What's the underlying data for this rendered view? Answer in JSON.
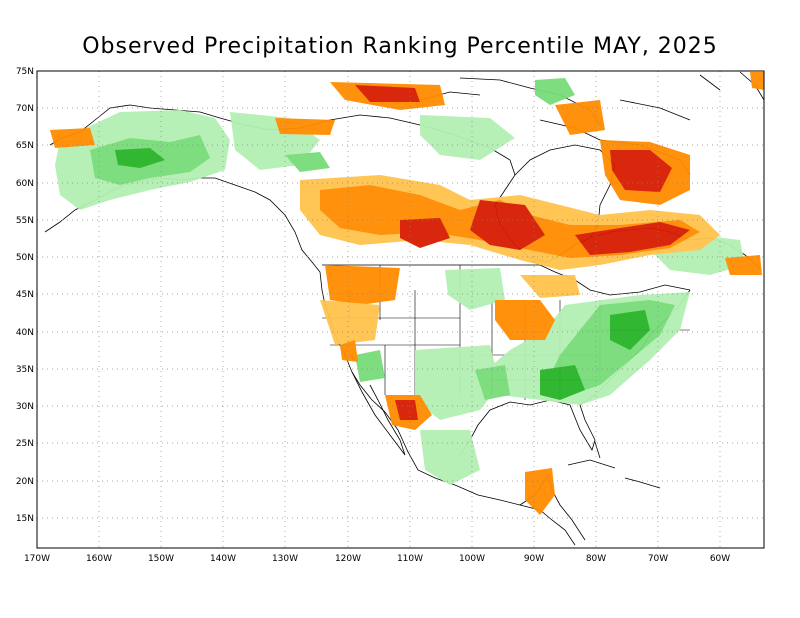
{
  "title": "Observed Precipitation Ranking Percentile MAY, 2025",
  "map": {
    "projection": "lat-lon",
    "lon_range": [
      -170,
      -53
    ],
    "lat_range": [
      11,
      75
    ],
    "grid": "dotted",
    "lat_labels": [
      "75N",
      "70N",
      "65N",
      "60N",
      "55N",
      "50N",
      "45N",
      "40N",
      "35N",
      "30N",
      "25N",
      "20N",
      "15N"
    ],
    "lon_labels": [
      "170W",
      "160W",
      "150W",
      "140W",
      "130W",
      "120W",
      "110W",
      "100W",
      "90W",
      "80W",
      "70W",
      "60W"
    ]
  },
  "colors": {
    "very_dry": "#d61c00",
    "dry": "#ff8c00",
    "somewhat_dry": "#ffc34d",
    "somewhat_wet": "#b4f0b4",
    "wet": "#78dc78",
    "very_wet": "#28b428",
    "land_outline": "#000000",
    "grid": "#888888"
  }
}
